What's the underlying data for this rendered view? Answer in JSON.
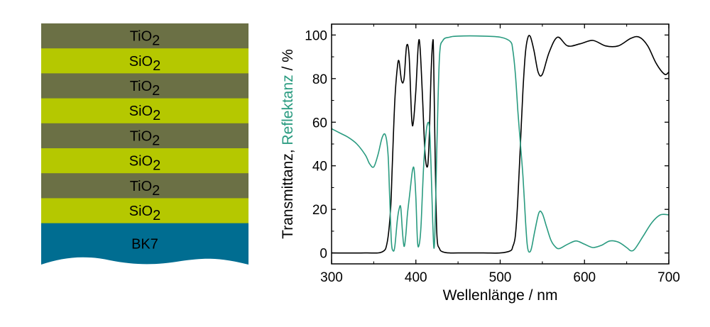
{
  "stack": {
    "colors": {
      "tio2": "#6b7045",
      "sio2": "#b5c800",
      "substrate": "#006d91"
    },
    "layers": [
      {
        "formula": "TiO",
        "sub": "2",
        "material": "tio2"
      },
      {
        "formula": "SiO",
        "sub": "2",
        "material": "sio2"
      },
      {
        "formula": "TiO",
        "sub": "2",
        "material": "tio2"
      },
      {
        "formula": "SiO",
        "sub": "2",
        "material": "sio2"
      },
      {
        "formula": "TiO",
        "sub": "2",
        "material": "tio2"
      },
      {
        "formula": "SiO",
        "sub": "2",
        "material": "sio2"
      },
      {
        "formula": "TiO",
        "sub": "2",
        "material": "tio2"
      },
      {
        "formula": "SiO",
        "sub": "2",
        "material": "sio2"
      }
    ],
    "substrate_label": "BK7"
  },
  "chart_data": {
    "type": "line",
    "xlabel": "Wellenlänge / nm",
    "ylabel": {
      "part1": "Transmittanz, ",
      "part2": "Reflektanz",
      "part3": " / %"
    },
    "xlim": [
      300,
      700
    ],
    "ylim": [
      -5,
      105
    ],
    "xticks": [
      300,
      400,
      500,
      600,
      700
    ],
    "yticks": [
      0,
      20,
      40,
      60,
      80,
      100
    ],
    "grid": false,
    "series": [
      {
        "name": "Transmittanz",
        "color": "#000000",
        "x": [
          300,
          340,
          360,
          366,
          370,
          372,
          375,
          378,
          380,
          383,
          386,
          389,
          392,
          395,
          397,
          400,
          403,
          405,
          408,
          411,
          414,
          416,
          418,
          420,
          421,
          423,
          425,
          428,
          432,
          440,
          450,
          480,
          500,
          512,
          515,
          518,
          521,
          524,
          527,
          530,
          533,
          536,
          540,
          545,
          550,
          558,
          568,
          580,
          595,
          610,
          625,
          640,
          655,
          665,
          675,
          685,
          695,
          700
        ],
        "y": [
          0,
          0,
          0.5,
          5,
          20,
          40,
          70,
          85,
          88,
          79,
          80,
          95,
          90,
          62,
          60,
          75,
          96,
          94,
          70,
          45,
          40,
          55,
          82,
          97,
          90,
          40,
          8,
          2,
          0.5,
          0,
          0,
          0,
          0,
          1,
          3,
          8,
          25,
          50,
          75,
          92,
          99,
          99,
          93,
          83,
          82,
          92,
          99,
          95,
          96,
          97.5,
          95,
          95,
          98.5,
          99,
          95,
          87,
          82,
          83
        ]
      },
      {
        "name": "Reflektanz",
        "color": "#2a9b80",
        "x": [
          300,
          310,
          320,
          330,
          340,
          345,
          350,
          355,
          360,
          364,
          367,
          369,
          371,
          373,
          375,
          378,
          380,
          382,
          384,
          386,
          388,
          390,
          393,
          396,
          398,
          400,
          402,
          404,
          406,
          408,
          410,
          413,
          416,
          418,
          420,
          422,
          425,
          428,
          432,
          440,
          450,
          480,
          500,
          512,
          515,
          518,
          521,
          524,
          527,
          530,
          532,
          534,
          537,
          541,
          546,
          550,
          555,
          560,
          565,
          570,
          580,
          590,
          600,
          610,
          620,
          630,
          640,
          650,
          655,
          660,
          670,
          680,
          690,
          700
        ],
        "y": [
          57,
          55,
          53,
          50,
          45,
          41,
          39.5,
          45,
          53,
          54,
          45,
          25,
          5,
          1,
          3,
          15,
          20,
          21,
          10,
          3,
          8,
          18,
          28,
          38,
          38,
          25,
          5,
          4,
          12,
          30,
          45,
          58,
          58,
          40,
          14,
          4,
          50,
          90,
          97.5,
          99,
          99.5,
          99.5,
          99,
          97,
          93,
          82,
          65,
          50,
          35,
          15,
          4,
          0.5,
          2,
          10,
          18.5,
          18,
          12,
          6,
          3,
          2,
          4,
          5.5,
          4,
          2.5,
          3.5,
          5.5,
          5,
          2.5,
          1,
          2,
          8,
          14,
          17.5,
          17.5
        ]
      }
    ]
  }
}
